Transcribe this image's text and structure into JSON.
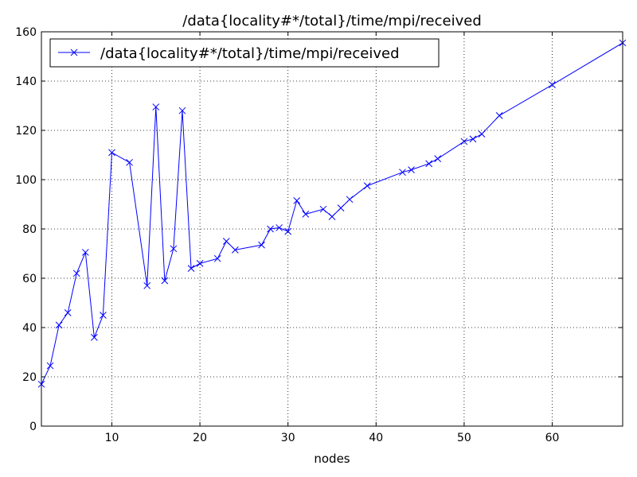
{
  "chart_data": {
    "type": "line",
    "title": "/data{locality#*/total}/time/mpi/received",
    "xlabel": "nodes",
    "ylabel": "",
    "xlim": [
      2,
      68
    ],
    "ylim": [
      0,
      160
    ],
    "xticks": [
      10,
      20,
      30,
      40,
      50,
      60
    ],
    "yticks": [
      0,
      20,
      40,
      60,
      80,
      100,
      120,
      140,
      160
    ],
    "grid": true,
    "legend_position": "top-left",
    "series": [
      {
        "name": "/data{locality#*/total}/time/mpi/received",
        "color": "#0000ff",
        "marker": "x",
        "x": [
          2,
          3,
          4,
          5,
          6,
          7,
          8,
          9,
          10,
          12,
          14,
          15,
          16,
          17,
          18,
          19,
          20,
          22,
          23,
          24,
          27,
          28,
          29,
          30,
          31,
          32,
          34,
          35,
          36,
          37,
          39,
          43,
          44,
          46,
          47,
          50,
          51,
          52,
          54,
          60,
          68
        ],
        "y": [
          17,
          24.5,
          41,
          46,
          62,
          70.5,
          36,
          45,
          111,
          107,
          57,
          129.5,
          59,
          72,
          128,
          64,
          66,
          68,
          75,
          71.5,
          73.5,
          80,
          80.5,
          79,
          91.5,
          86,
          88,
          85,
          88.5,
          92,
          97.5,
          103,
          104,
          106.5,
          108.5,
          115.5,
          116.5,
          118.5,
          126,
          138.5,
          155.5
        ]
      }
    ]
  }
}
